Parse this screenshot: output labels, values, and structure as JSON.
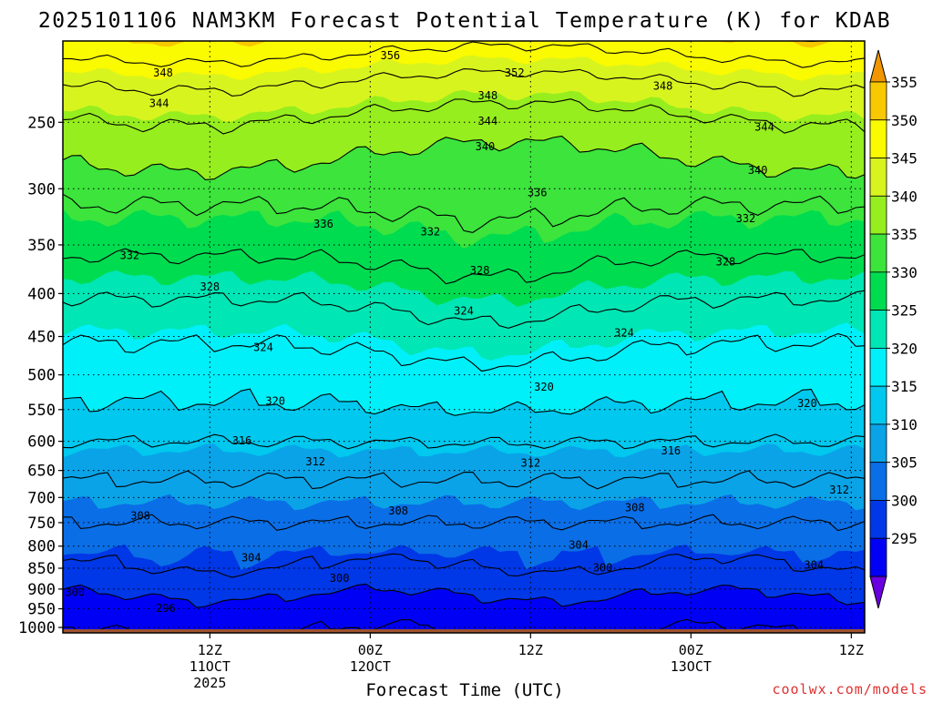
{
  "chart_data": {
    "type": "heatmap",
    "title": "2025101106 NAM3KM Forecast Potential Temperature (K) for KDAB",
    "xlabel": "Forecast Time (UTC)",
    "ylabel": "",
    "credit": "coolwx.com/models",
    "y_axis": {
      "scale": "pressure (hPa), inverted",
      "range": [
        1015,
        200
      ],
      "ticks": [
        250,
        300,
        350,
        400,
        450,
        500,
        550,
        600,
        650,
        700,
        750,
        800,
        850,
        900,
        950,
        1000
      ]
    },
    "x_axis": {
      "range_hours": [
        -5,
        55
      ],
      "ticks": [
        {
          "hour": 6,
          "lines": [
            "12Z",
            "11OCT",
            "2025"
          ]
        },
        {
          "hour": 18,
          "lines": [
            "00Z",
            "12OCT"
          ]
        },
        {
          "hour": 30,
          "lines": [
            "12Z"
          ]
        },
        {
          "hour": 42,
          "lines": [
            "00Z",
            "13OCT"
          ]
        },
        {
          "hour": 54,
          "lines": [
            "12Z"
          ]
        }
      ]
    },
    "grid": true,
    "contour_levels": [
      296,
      300,
      304,
      308,
      312,
      316,
      320,
      324,
      328,
      332,
      336,
      340,
      344,
      348,
      352,
      356
    ],
    "contour_labels": [
      {
        "value": "356",
        "p": 208,
        "hour": 19.5
      },
      {
        "value": "352",
        "p": 218,
        "hour": 28.8
      },
      {
        "value": "348",
        "p": 218,
        "hour": 2.5
      },
      {
        "value": "348",
        "p": 232,
        "hour": 26.8
      },
      {
        "value": "348",
        "p": 226,
        "hour": 39.9
      },
      {
        "value": "344",
        "p": 237,
        "hour": 2.2
      },
      {
        "value": "344",
        "p": 249,
        "hour": 26.8
      },
      {
        "value": "344",
        "p": 253,
        "hour": 47.5
      },
      {
        "value": "340",
        "p": 267,
        "hour": 26.6
      },
      {
        "value": "340",
        "p": 285,
        "hour": 47.0
      },
      {
        "value": "336",
        "p": 303,
        "hour": 30.5
      },
      {
        "value": "336",
        "p": 330,
        "hour": 14.5
      },
      {
        "value": "332",
        "p": 325,
        "hour": 46.1
      },
      {
        "value": "332",
        "p": 337,
        "hour": 22.5
      },
      {
        "value": "332",
        "p": 360,
        "hour": 0.0
      },
      {
        "value": "328",
        "p": 366,
        "hour": 44.6
      },
      {
        "value": "328",
        "p": 375,
        "hour": 26.2
      },
      {
        "value": "328",
        "p": 392,
        "hour": 6.0
      },
      {
        "value": "324",
        "p": 419,
        "hour": 25.0
      },
      {
        "value": "324",
        "p": 445,
        "hour": 37.0
      },
      {
        "value": "324",
        "p": 463,
        "hour": 10.0
      },
      {
        "value": "320",
        "p": 516,
        "hour": 31.0
      },
      {
        "value": "320",
        "p": 537,
        "hour": 10.9
      },
      {
        "value": "320",
        "p": 540,
        "hour": 50.7
      },
      {
        "value": "316",
        "p": 598,
        "hour": 8.4
      },
      {
        "value": "316",
        "p": 615,
        "hour": 40.5
      },
      {
        "value": "312",
        "p": 634,
        "hour": 13.9
      },
      {
        "value": "312",
        "p": 636,
        "hour": 30.0
      },
      {
        "value": "312",
        "p": 685,
        "hour": 53.1
      },
      {
        "value": "308",
        "p": 719,
        "hour": 37.8
      },
      {
        "value": "308",
        "p": 725,
        "hour": 20.1
      },
      {
        "value": "308",
        "p": 735,
        "hour": 0.8
      },
      {
        "value": "304",
        "p": 797,
        "hour": 33.6
      },
      {
        "value": "304",
        "p": 825,
        "hour": 9.1
      },
      {
        "value": "304",
        "p": 842,
        "hour": 51.2
      },
      {
        "value": "300",
        "p": 848,
        "hour": 35.4
      },
      {
        "value": "300",
        "p": 873,
        "hour": 15.7
      },
      {
        "value": "300",
        "p": 907,
        "hour": -4.1
      },
      {
        "value": "296",
        "p": 948,
        "hour": 2.7
      }
    ],
    "colorbar": {
      "levels": [
        295,
        300,
        305,
        310,
        315,
        320,
        325,
        330,
        335,
        340,
        345,
        350,
        355
      ],
      "colors": [
        "#6a00e0",
        "#0000f5",
        "#0037e6",
        "#0a6ee6",
        "#0aa3e8",
        "#00c8ee",
        "#00f0fa",
        "#00e6b4",
        "#00dc50",
        "#3ce43c",
        "#96ee1e",
        "#d8f41e",
        "#fafa00",
        "#f8c800",
        "#f09600"
      ]
    },
    "surface_color": "#a0522d"
  }
}
